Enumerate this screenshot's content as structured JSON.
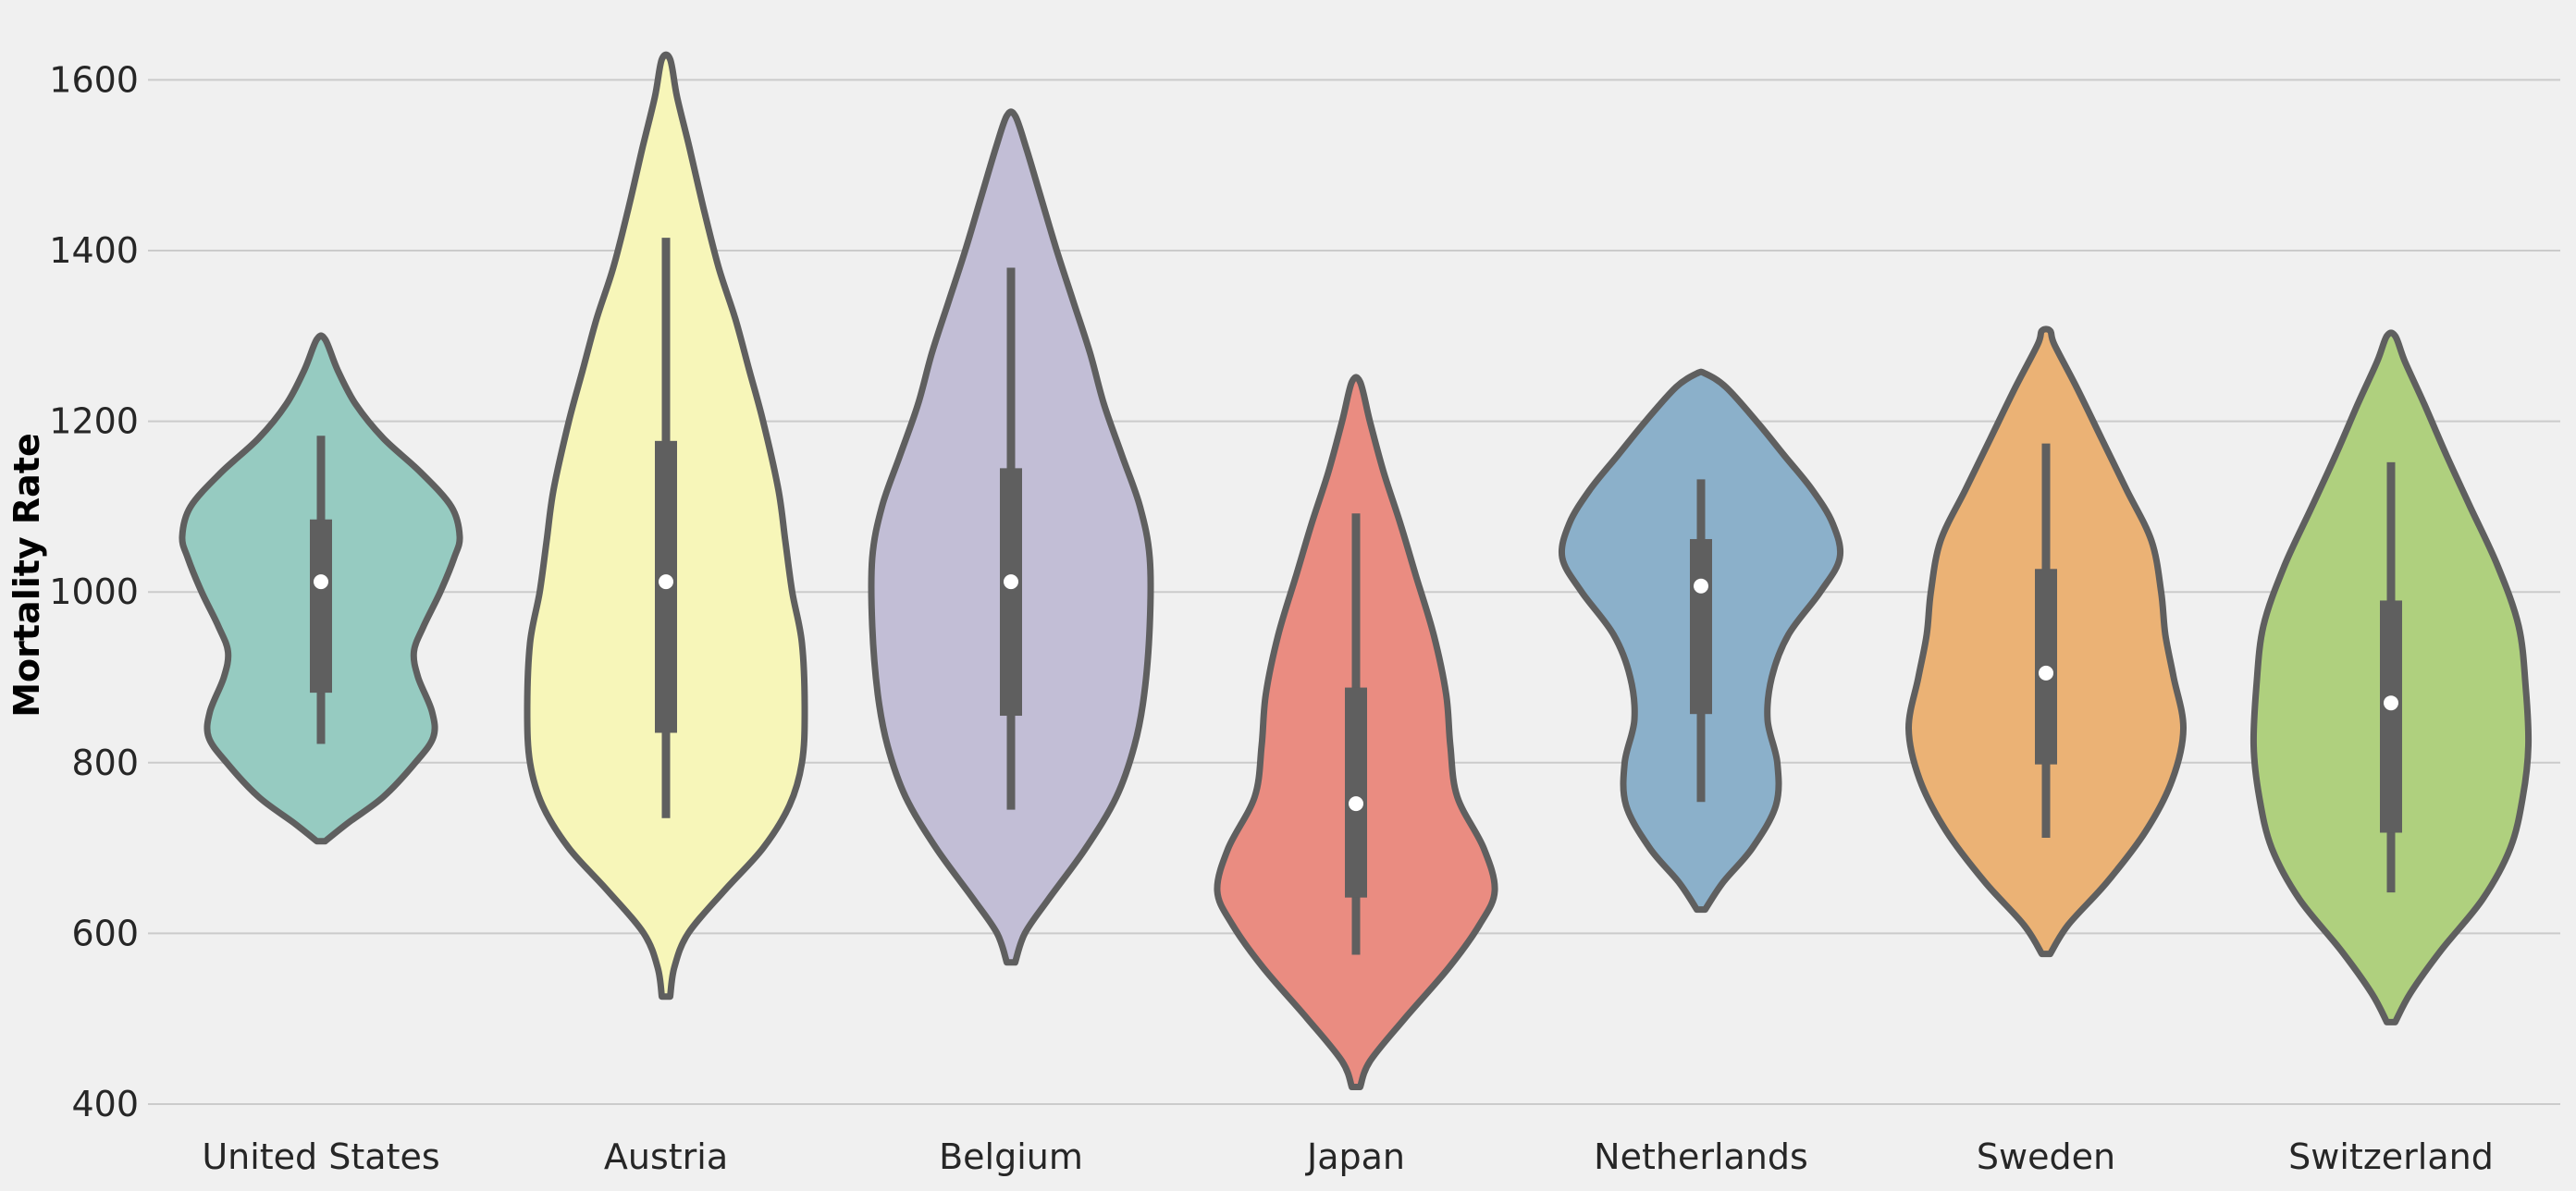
{
  "chart_data": {
    "type": "violin",
    "title": "",
    "xlabel": "",
    "ylabel": "Mortality Rate",
    "ylim": [
      400,
      1660
    ],
    "yticks": [
      400,
      600,
      800,
      1000,
      1200,
      1400,
      1600
    ],
    "grid": "horizontal",
    "legend": "none",
    "colors": {
      "background": "#f0f0f0",
      "grid": "#cbcbcb",
      "outline": "#5f5f5f",
      "median_dot": "#ffffff"
    },
    "categories": [
      "United States",
      "Austria",
      "Belgium",
      "Japan",
      "Netherlands",
      "Sweden",
      "Switzerland"
    ],
    "series": [
      {
        "category": "United States",
        "color": "#96cbc1",
        "min": 708,
        "max": 1296,
        "whisker_low": 822,
        "q1": 882,
        "median": 1012,
        "q3": 1085,
        "whisker_high": 1183,
        "profile": [
          [
            708,
            0.03
          ],
          [
            730,
            0.2
          ],
          [
            760,
            0.45
          ],
          [
            800,
            0.68
          ],
          [
            830,
            0.81
          ],
          [
            860,
            0.8
          ],
          [
            900,
            0.7
          ],
          [
            930,
            0.67
          ],
          [
            960,
            0.74
          ],
          [
            1000,
            0.86
          ],
          [
            1040,
            0.96
          ],
          [
            1065,
            1.0
          ],
          [
            1100,
            0.94
          ],
          [
            1140,
            0.72
          ],
          [
            1180,
            0.45
          ],
          [
            1220,
            0.25
          ],
          [
            1260,
            0.12
          ],
          [
            1296,
            0.03
          ]
        ]
      },
      {
        "category": "Austria",
        "color": "#f7f6b9",
        "min": 526,
        "max": 1624,
        "whisker_low": 735,
        "q1": 835,
        "median": 1012,
        "q3": 1177,
        "whisker_high": 1415,
        "profile": [
          [
            526,
            0.03
          ],
          [
            560,
            0.06
          ],
          [
            600,
            0.16
          ],
          [
            650,
            0.42
          ],
          [
            700,
            0.7
          ],
          [
            750,
            0.89
          ],
          [
            800,
            0.98
          ],
          [
            860,
            1.0
          ],
          [
            940,
            0.98
          ],
          [
            1000,
            0.91
          ],
          [
            1060,
            0.86
          ],
          [
            1120,
            0.81
          ],
          [
            1200,
            0.7
          ],
          [
            1260,
            0.6
          ],
          [
            1320,
            0.5
          ],
          [
            1380,
            0.38
          ],
          [
            1450,
            0.27
          ],
          [
            1520,
            0.17
          ],
          [
            1580,
            0.08
          ],
          [
            1624,
            0.03
          ]
        ]
      },
      {
        "category": "Belgium",
        "color": "#c2bed6",
        "min": 566,
        "max": 1558,
        "whisker_low": 745,
        "q1": 855,
        "median": 1012,
        "q3": 1145,
        "whisker_high": 1380,
        "profile": [
          [
            566,
            0.03
          ],
          [
            600,
            0.1
          ],
          [
            640,
            0.27
          ],
          [
            700,
            0.54
          ],
          [
            760,
            0.76
          ],
          [
            820,
            0.89
          ],
          [
            880,
            0.96
          ],
          [
            960,
            1.0
          ],
          [
            1040,
            1.0
          ],
          [
            1100,
            0.93
          ],
          [
            1160,
            0.8
          ],
          [
            1220,
            0.67
          ],
          [
            1280,
            0.57
          ],
          [
            1340,
            0.45
          ],
          [
            1400,
            0.33
          ],
          [
            1460,
            0.22
          ],
          [
            1520,
            0.11
          ],
          [
            1558,
            0.03
          ]
        ]
      },
      {
        "category": "Japan",
        "color": "#ea8c81",
        "min": 420,
        "max": 1246,
        "whisker_low": 575,
        "q1": 642,
        "median": 752,
        "q3": 888,
        "whisker_high": 1092,
        "profile": [
          [
            420,
            0.03
          ],
          [
            450,
            0.1
          ],
          [
            500,
            0.35
          ],
          [
            560,
            0.67
          ],
          [
            610,
            0.89
          ],
          [
            650,
            1.0
          ],
          [
            700,
            0.92
          ],
          [
            760,
            0.73
          ],
          [
            820,
            0.68
          ],
          [
            880,
            0.65
          ],
          [
            950,
            0.56
          ],
          [
            1020,
            0.43
          ],
          [
            1080,
            0.32
          ],
          [
            1140,
            0.2
          ],
          [
            1200,
            0.1
          ],
          [
            1246,
            0.03
          ]
        ]
      },
      {
        "category": "Netherlands",
        "color": "#8bb0ca",
        "min": 628,
        "max": 1256,
        "whisker_low": 754,
        "q1": 857,
        "median": 1007,
        "q3": 1062,
        "whisker_high": 1132,
        "profile": [
          [
            628,
            0.03
          ],
          [
            660,
            0.16
          ],
          [
            700,
            0.37
          ],
          [
            750,
            0.54
          ],
          [
            800,
            0.55
          ],
          [
            850,
            0.48
          ],
          [
            900,
            0.51
          ],
          [
            950,
            0.63
          ],
          [
            1000,
            0.86
          ],
          [
            1040,
            1.0
          ],
          [
            1080,
            0.95
          ],
          [
            1120,
            0.8
          ],
          [
            1160,
            0.6
          ],
          [
            1200,
            0.4
          ],
          [
            1240,
            0.18
          ],
          [
            1256,
            0.03
          ]
        ]
      },
      {
        "category": "Sweden",
        "color": "#ebb275",
        "min": 576,
        "max": 1306,
        "whisker_low": 712,
        "q1": 798,
        "median": 905,
        "q3": 1027,
        "whisker_high": 1174,
        "profile": [
          [
            576,
            0.03
          ],
          [
            610,
            0.16
          ],
          [
            660,
            0.44
          ],
          [
            720,
            0.72
          ],
          [
            780,
            0.91
          ],
          [
            840,
            0.99
          ],
          [
            900,
            0.92
          ],
          [
            950,
            0.86
          ],
          [
            1000,
            0.83
          ],
          [
            1060,
            0.76
          ],
          [
            1120,
            0.58
          ],
          [
            1180,
            0.4
          ],
          [
            1240,
            0.22
          ],
          [
            1290,
            0.06
          ],
          [
            1306,
            0.03
          ]
        ]
      },
      {
        "category": "Switzerland",
        "color": "#afd07e",
        "min": 496,
        "max": 1300,
        "whisker_low": 648,
        "q1": 718,
        "median": 870,
        "q3": 990,
        "whisker_high": 1152,
        "profile": [
          [
            496,
            0.03
          ],
          [
            530,
            0.14
          ],
          [
            580,
            0.36
          ],
          [
            640,
            0.66
          ],
          [
            700,
            0.86
          ],
          [
            760,
            0.95
          ],
          [
            820,
            0.99
          ],
          [
            890,
            0.97
          ],
          [
            960,
            0.92
          ],
          [
            1030,
            0.77
          ],
          [
            1100,
            0.57
          ],
          [
            1160,
            0.4
          ],
          [
            1220,
            0.24
          ],
          [
            1270,
            0.1
          ],
          [
            1300,
            0.03
          ]
        ]
      }
    ]
  }
}
